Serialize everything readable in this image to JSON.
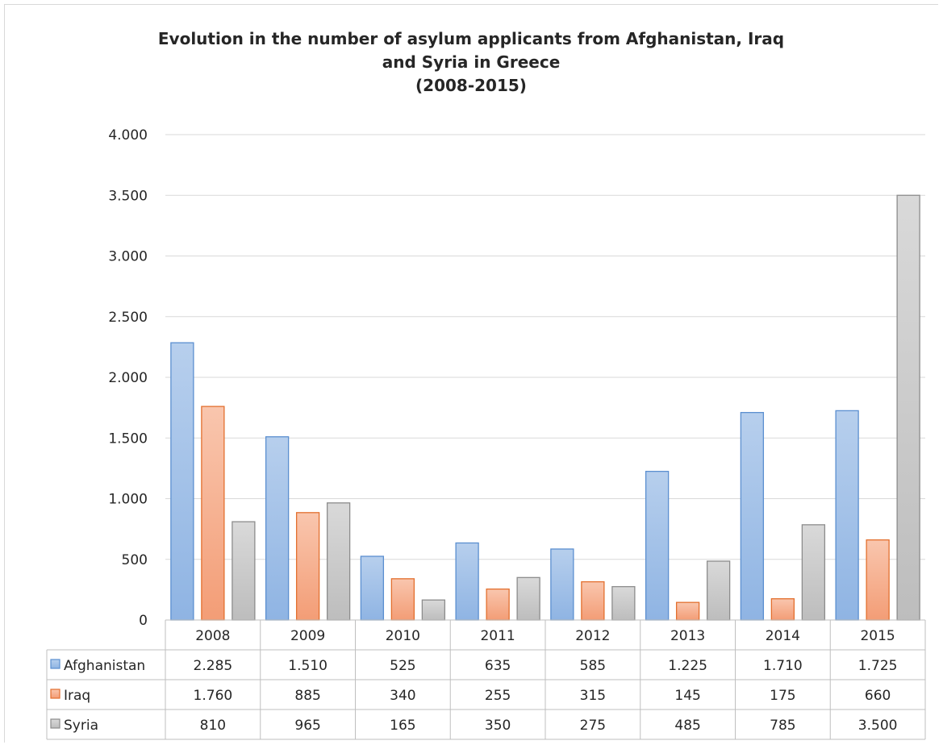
{
  "chart_data": {
    "type": "bar",
    "title_lines": [
      "Evolution in the number of asylum applicants from Afghanistan, Iraq",
      "and Syria in Greece",
      "(2008-2015)"
    ],
    "categories": [
      "2008",
      "2009",
      "2010",
      "2011",
      "2012",
      "2013",
      "2014",
      "2015"
    ],
    "series": [
      {
        "name": "Afghanistan",
        "values": [
          2285,
          1510,
          525,
          635,
          585,
          1225,
          1710,
          1725
        ],
        "labels": [
          "2.285",
          "1.510",
          "525",
          "635",
          "585",
          "1.225",
          "1.710",
          "1.725"
        ],
        "fill_top": "#b7cfed",
        "fill_bottom": "#8fb4e3",
        "stroke": "#5b8fd0"
      },
      {
        "name": "Iraq",
        "values": [
          1760,
          885,
          340,
          255,
          315,
          145,
          175,
          660
        ],
        "labels": [
          "1.760",
          "885",
          "340",
          "255",
          "315",
          "145",
          "175",
          "660"
        ],
        "fill_top": "#f9c6ae",
        "fill_bottom": "#f39d76",
        "stroke": "#e36f2e"
      },
      {
        "name": "Syria",
        "values": [
          810,
          965,
          165,
          350,
          275,
          485,
          785,
          3500
        ],
        "labels": [
          "810",
          "965",
          "165",
          "350",
          "275",
          "485",
          "785",
          "3.500"
        ],
        "fill_top": "#d9d9d9",
        "fill_bottom": "#bdbdbd",
        "stroke": "#8c8c8c"
      }
    ],
    "y_ticks": [
      0,
      500,
      1000,
      1500,
      2000,
      2500,
      3000,
      3500,
      4000
    ],
    "y_tick_labels": [
      "0",
      "500",
      "1.000",
      "1.500",
      "2.000",
      "2.500",
      "3.000",
      "3.500",
      "4.000"
    ],
    "ylim": [
      0,
      4000
    ],
    "grid": true,
    "legend": "data-table-below"
  }
}
